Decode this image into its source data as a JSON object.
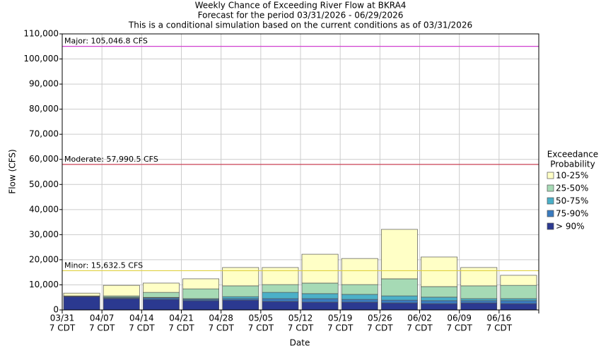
{
  "chart_data": {
    "type": "stacked_bar",
    "title": "Weekly Chance of Exceeding River Flow at BKRA4",
    "subtitle": [
      "Forecast for the period 03/31/2026 - 06/29/2026",
      "This is a conditional simulation based on the current conditions as of 03/31/2026"
    ],
    "x_label": "Date",
    "y_label": "Flow (CFS)",
    "categories": [
      "03/31",
      "04/07",
      "04/14",
      "04/21",
      "04/28",
      "05/05",
      "05/12",
      "05/19",
      "05/26",
      "06/02",
      "06/09",
      "06/16"
    ],
    "category_sublabel": "7 CDT",
    "legend_title": [
      "Exceedance",
      "Probability"
    ],
    "series": [
      {
        "name": "> 90%",
        "color": "#2b3990",
        "values": [
          5300,
          4500,
          4200,
          3700,
          3900,
          3400,
          3100,
          3100,
          2800,
          2500,
          2800,
          2500
        ]
      },
      {
        "name": "75-90%",
        "color": "#3a7bbf",
        "values": [
          100,
          300,
          600,
          500,
          600,
          1100,
          1400,
          1100,
          1100,
          1200,
          900,
          1200
        ]
      },
      {
        "name": "50-75%",
        "color": "#4bb0c8",
        "values": [
          100,
          300,
          200,
          300,
          800,
          2500,
          2000,
          2000,
          1700,
          1400,
          800,
          800
        ]
      },
      {
        "name": "25-50%",
        "color": "#a6dab5",
        "values": [
          100,
          500,
          2000,
          3900,
          4300,
          3100,
          4200,
          3900,
          6800,
          4200,
          5100,
          5300
        ]
      },
      {
        "name": "10-25%",
        "color": "#ffffc6",
        "values": [
          1100,
          4200,
          3700,
          4000,
          7300,
          6800,
          11500,
          10400,
          19700,
          11800,
          7300,
          4000
        ]
      }
    ],
    "thresholds": [
      {
        "label": "Major: 105,046.8 CFS",
        "value": 105046.8,
        "color": "#d040d0"
      },
      {
        "label": "Moderate: 57,990.5 CFS",
        "value": 57990.5,
        "color": "#c84055"
      },
      {
        "label": "Minor: 15,632.5 CFS",
        "value": 15632.5,
        "color": "#e0d040"
      }
    ],
    "ylim": [
      0,
      110000
    ],
    "yticks": [
      0,
      {
        "value": 10000,
        "label": "10,000"
      },
      {
        "value": 20000,
        "label": "20,000"
      },
      {
        "value": 30000,
        "label": "30,000"
      },
      {
        "value": 40000,
        "label": "40,000"
      },
      {
        "value": 50000,
        "label": "50,000"
      },
      {
        "value": 60000,
        "label": "60,000"
      },
      {
        "value": 70000,
        "label": "70,000"
      },
      {
        "value": 80000,
        "label": "80,000"
      },
      {
        "value": 90000,
        "label": "90,000"
      },
      {
        "value": 100000,
        "label": "100,000"
      },
      {
        "value": 110000,
        "label": "110,000"
      }
    ],
    "grid": true
  }
}
